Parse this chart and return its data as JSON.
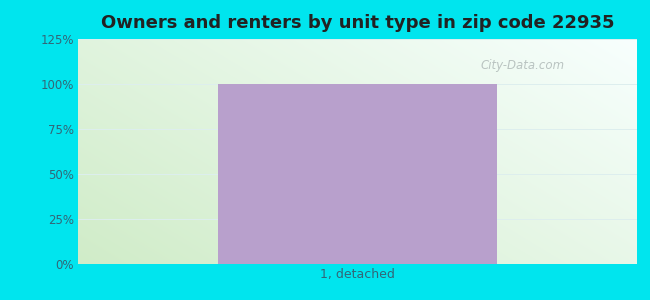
{
  "title": "Owners and renters by unit type in zip code 22935",
  "categories": [
    "1, detached"
  ],
  "values": [
    100
  ],
  "bar_color": "#b8a0cc",
  "bar_width": 0.5,
  "ylim": [
    0,
    125
  ],
  "yticks": [
    0,
    25,
    50,
    75,
    100,
    125
  ],
  "ytick_labels": [
    "0%",
    "25%",
    "50%",
    "75%",
    "100%",
    "125%"
  ],
  "title_fontsize": 13,
  "title_color": "#222222",
  "tick_color": "#336677",
  "outer_bg_color": "#00e5ee",
  "inner_bg_color_topleft": "#e8f5e0",
  "inner_bg_color_topright": "#e0f5f5",
  "inner_bg_color_bottomleft": "#d0ecc8",
  "inner_bg_color_bottomright": "#f8fffe",
  "watermark_text": "City-Data.com",
  "watermark_color": "#b0bab8",
  "xlabel_fontsize": 9,
  "gridline_color": "#ddeeee",
  "bar_edge_color": "none",
  "fig_width": 6.5,
  "fig_height": 3.0,
  "dpi": 100
}
